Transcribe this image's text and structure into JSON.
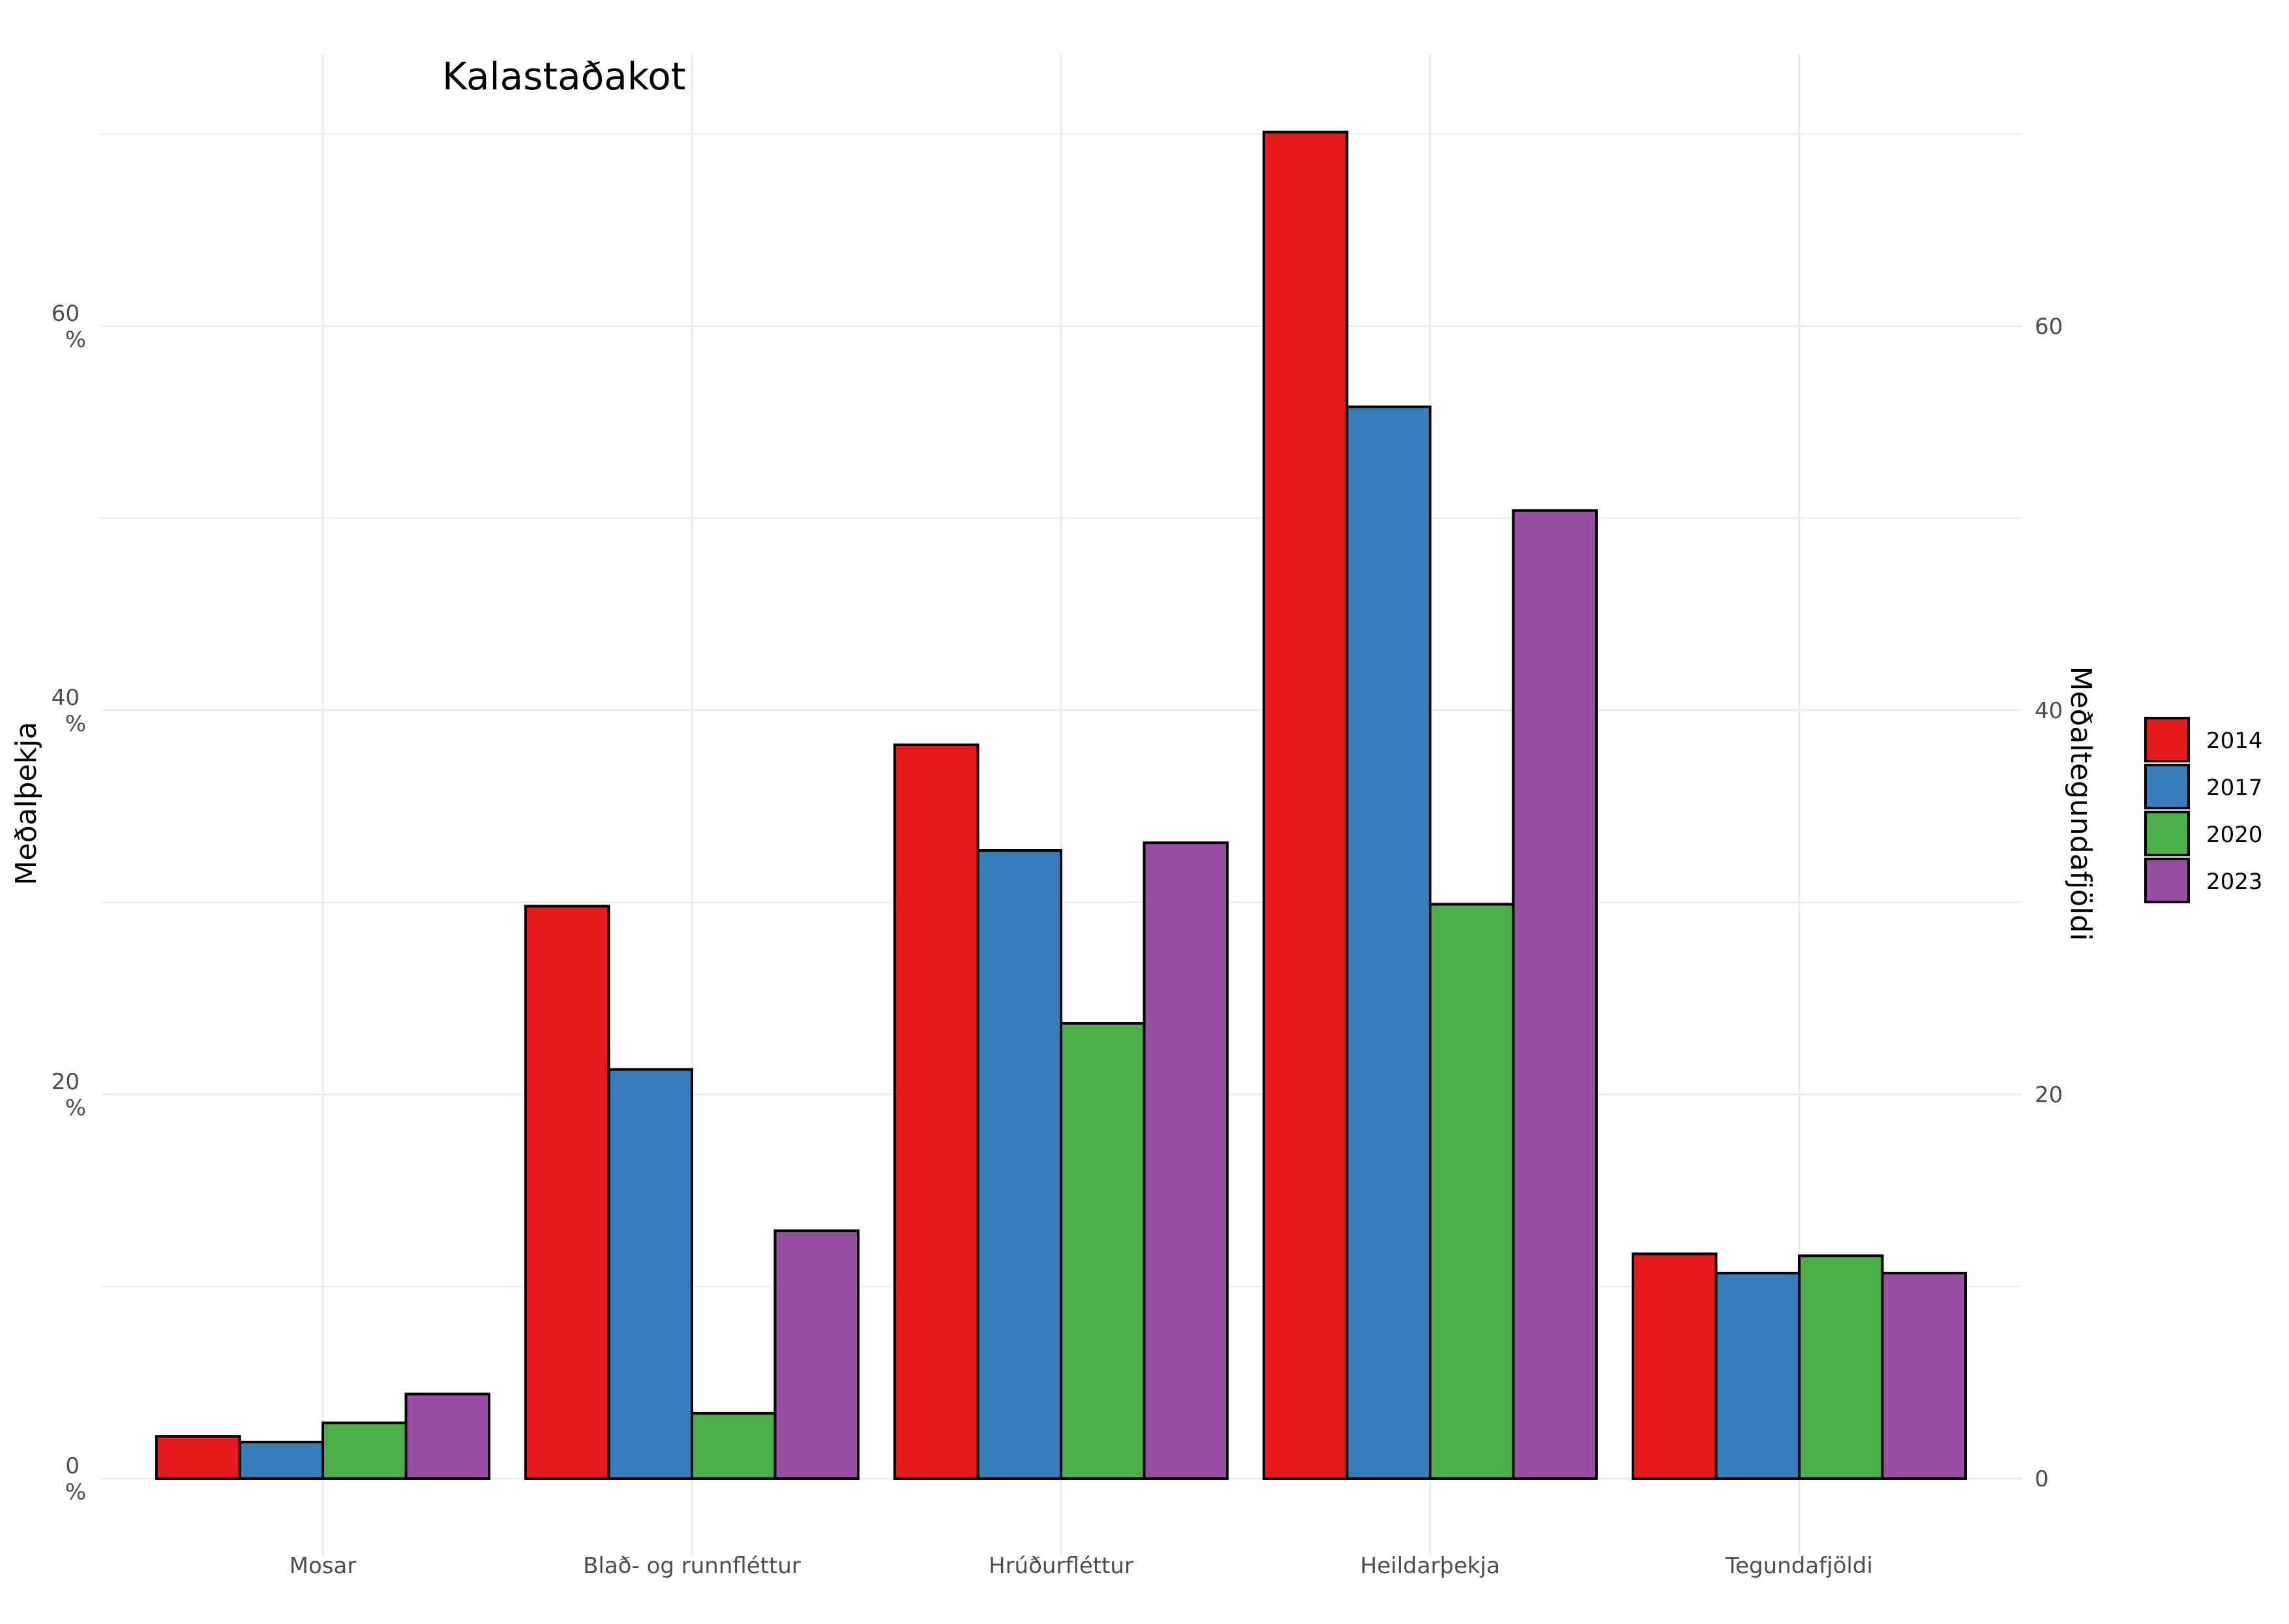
{
  "chart_data": {
    "type": "bar",
    "title": "Kalastaðakot",
    "ylabel": "Meðalþekja",
    "y2label": "Meðaltegundafjöldi",
    "categories": [
      "Mosar",
      "Blað- og runnfléttur",
      "Hrúðurfléttur",
      "Heildarþekja",
      "Tegundafjöldi"
    ],
    "series": [
      {
        "name": "2014",
        "color": "#E41A1C",
        "values": [
          2.2,
          29.8,
          38.2,
          70.1,
          11.7
        ]
      },
      {
        "name": "2017",
        "color": "#377EB8",
        "values": [
          1.9,
          21.3,
          32.7,
          55.8,
          10.7
        ]
      },
      {
        "name": "2020",
        "color": "#4DAF4A",
        "values": [
          2.9,
          3.4,
          23.7,
          29.9,
          11.6
        ]
      },
      {
        "name": "2023",
        "color": "#984EA3",
        "values": [
          4.4,
          12.9,
          33.1,
          50.4,
          10.7
        ]
      }
    ],
    "ylim": [
      -3,
      74
    ],
    "yticks_left": [
      {
        "value": 0,
        "label": "0",
        "unit": "%"
      },
      {
        "value": 20,
        "label": "20",
        "unit": "%"
      },
      {
        "value": 40,
        "label": "40",
        "unit": "%"
      },
      {
        "value": 60,
        "label": "60",
        "unit": "%"
      }
    ],
    "yticks_right": [
      {
        "value": 0,
        "label": "0"
      },
      {
        "value": 20,
        "label": "20"
      },
      {
        "value": 40,
        "label": "40"
      },
      {
        "value": 60,
        "label": "60"
      }
    ],
    "minor_grid": [
      10,
      30,
      50,
      70
    ],
    "grid": true,
    "legend_position": "right"
  }
}
